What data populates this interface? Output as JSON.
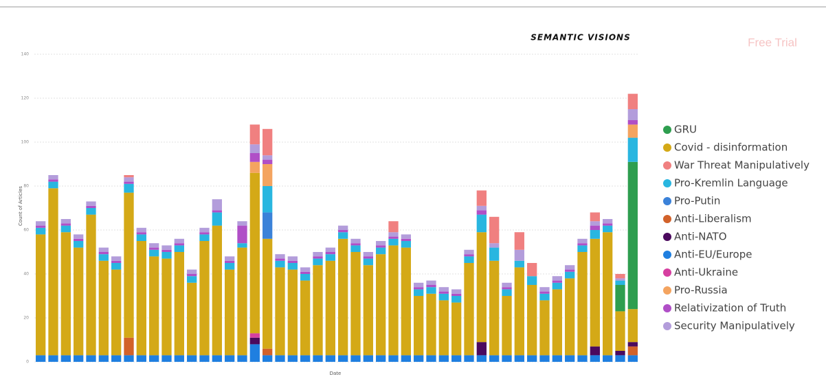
{
  "chart_data": {
    "type": "stacked_bar",
    "title": "SEMANTIC VISIONS",
    "watermark": "Free Trial",
    "xlabel": "Date",
    "ylabel": "Count of Articles",
    "ylim": [
      0,
      140
    ],
    "yticks": [
      0,
      20,
      40,
      60,
      80,
      100,
      120,
      140
    ],
    "grid": true,
    "legend": "right",
    "series": [
      {
        "name": "GRU",
        "color": "#2e9e4f",
        "values": [
          0,
          0,
          0,
          0,
          0,
          0,
          0,
          0,
          0,
          0,
          0,
          0,
          0,
          0,
          0,
          0,
          0,
          0,
          0,
          0,
          0,
          0,
          0,
          0,
          0,
          0,
          0,
          0,
          0,
          0,
          0,
          0,
          0,
          0,
          0,
          0,
          0,
          0,
          0,
          0,
          0,
          0,
          0,
          0,
          0,
          0,
          12,
          67
        ]
      },
      {
        "name": "Covid - disinformation",
        "color": "#d4a917",
        "values": [
          55,
          76,
          56,
          49,
          64,
          43,
          39,
          66,
          52,
          45,
          44,
          47,
          33,
          52,
          59,
          39,
          49,
          73,
          50,
          40,
          39,
          34,
          41,
          43,
          53,
          47,
          41,
          46,
          50,
          49,
          27,
          28,
          25,
          24,
          42,
          50,
          43,
          27,
          40,
          32,
          25,
          30,
          35,
          47,
          49,
          56,
          18,
          15
        ]
      },
      {
        "name": "War Threat Manipulatively",
        "color": "#f08080",
        "values": [
          0,
          0,
          0,
          0,
          0,
          0,
          0,
          1,
          0,
          0,
          0,
          0,
          0,
          0,
          0,
          0,
          0,
          9,
          12,
          0,
          0,
          0,
          0,
          0,
          0,
          0,
          0,
          0,
          5,
          0,
          0,
          0,
          0,
          0,
          0,
          7,
          12,
          0,
          8,
          6,
          0,
          0,
          0,
          0,
          4,
          0,
          2,
          7
        ]
      },
      {
        "name": "Pro-Kremlin Language",
        "color": "#29b6e0",
        "values": [
          3,
          3,
          3,
          3,
          3,
          3,
          3,
          4,
          3,
          3,
          3,
          3,
          3,
          3,
          6,
          3,
          2,
          0,
          12,
          3,
          3,
          3,
          3,
          3,
          3,
          3,
          3,
          3,
          3,
          3,
          3,
          3,
          3,
          3,
          3,
          8,
          6,
          3,
          3,
          4,
          3,
          3,
          3,
          3,
          4,
          3,
          2,
          11
        ]
      },
      {
        "name": "Pro-Putin",
        "color": "#3b82d9",
        "values": [
          0,
          0,
          0,
          0,
          0,
          0,
          0,
          0,
          0,
          0,
          0,
          0,
          0,
          0,
          0,
          0,
          0,
          0,
          12,
          0,
          0,
          0,
          0,
          0,
          0,
          0,
          0,
          0,
          0,
          0,
          0,
          0,
          0,
          0,
          0,
          0,
          0,
          0,
          0,
          0,
          0,
          0,
          0,
          0,
          0,
          0,
          0,
          0
        ]
      },
      {
        "name": "Anti-Liberalism",
        "color": "#d2622a",
        "values": [
          0,
          0,
          0,
          0,
          0,
          0,
          0,
          8,
          0,
          0,
          0,
          0,
          0,
          0,
          0,
          0,
          0,
          0,
          3,
          0,
          0,
          0,
          0,
          0,
          0,
          0,
          0,
          0,
          0,
          0,
          0,
          0,
          0,
          0,
          0,
          0,
          0,
          0,
          0,
          0,
          0,
          0,
          0,
          0,
          0,
          0,
          0,
          4
        ]
      },
      {
        "name": "Anti-NATO",
        "color": "#4b0a5e",
        "values": [
          0,
          0,
          0,
          0,
          0,
          0,
          0,
          0,
          0,
          0,
          0,
          0,
          0,
          0,
          0,
          0,
          0,
          3,
          0,
          0,
          0,
          0,
          0,
          0,
          0,
          0,
          0,
          0,
          0,
          0,
          0,
          0,
          0,
          0,
          0,
          6,
          0,
          0,
          0,
          0,
          0,
          0,
          0,
          0,
          4,
          0,
          2,
          2
        ]
      },
      {
        "name": "Anti-EU/Europe",
        "color": "#1f7fe0",
        "values": [
          3,
          3,
          3,
          3,
          3,
          3,
          3,
          3,
          3,
          3,
          3,
          3,
          3,
          3,
          3,
          3,
          3,
          8,
          3,
          3,
          3,
          3,
          3,
          3,
          3,
          3,
          3,
          3,
          3,
          3,
          3,
          3,
          3,
          3,
          3,
          3,
          3,
          3,
          3,
          3,
          3,
          3,
          3,
          3,
          3,
          3,
          3,
          3
        ]
      },
      {
        "name": "Anti-Ukraine",
        "color": "#d63fa0",
        "values": [
          0,
          0,
          0,
          0,
          0,
          0,
          0,
          0,
          0,
          0,
          0,
          0,
          0,
          0,
          0,
          0,
          0,
          2,
          0,
          0,
          0,
          0,
          0,
          0,
          0,
          0,
          0,
          0,
          0,
          0,
          0,
          0,
          0,
          0,
          0,
          0,
          0,
          0,
          0,
          0,
          0,
          0,
          0,
          0,
          0,
          0,
          0,
          0
        ]
      },
      {
        "name": "Pro-Russia",
        "color": "#f4a460",
        "values": [
          0,
          0,
          0,
          0,
          0,
          0,
          0,
          0,
          0,
          0,
          0,
          0,
          0,
          0,
          0,
          0,
          0,
          5,
          10,
          0,
          0,
          0,
          0,
          0,
          0,
          0,
          0,
          0,
          0,
          0,
          0,
          0,
          0,
          0,
          0,
          0,
          0,
          0,
          0,
          0,
          0,
          0,
          0,
          0,
          0,
          0,
          0,
          6
        ]
      },
      {
        "name": "Relativization of Truth",
        "color": "#b04fc7",
        "values": [
          1,
          1,
          1,
          1,
          1,
          1,
          1,
          1,
          1,
          1,
          1,
          1,
          1,
          1,
          1,
          1,
          8,
          4,
          2,
          1,
          1,
          1,
          1,
          1,
          1,
          1,
          1,
          1,
          1,
          1,
          1,
          1,
          1,
          1,
          1,
          2,
          0,
          1,
          0,
          0,
          1,
          1,
          1,
          1,
          2,
          1,
          0,
          2
        ]
      },
      {
        "name": "Security Manipulatively",
        "color": "#b39ddb",
        "values": [
          2,
          2,
          2,
          2,
          2,
          2,
          2,
          2,
          2,
          2,
          2,
          2,
          2,
          2,
          5,
          2,
          2,
          4,
          2,
          2,
          2,
          2,
          2,
          2,
          2,
          2,
          2,
          2,
          2,
          2,
          2,
          2,
          2,
          2,
          2,
          2,
          2,
          2,
          5,
          0,
          2,
          2,
          2,
          2,
          2,
          2,
          1,
          5
        ]
      }
    ]
  }
}
